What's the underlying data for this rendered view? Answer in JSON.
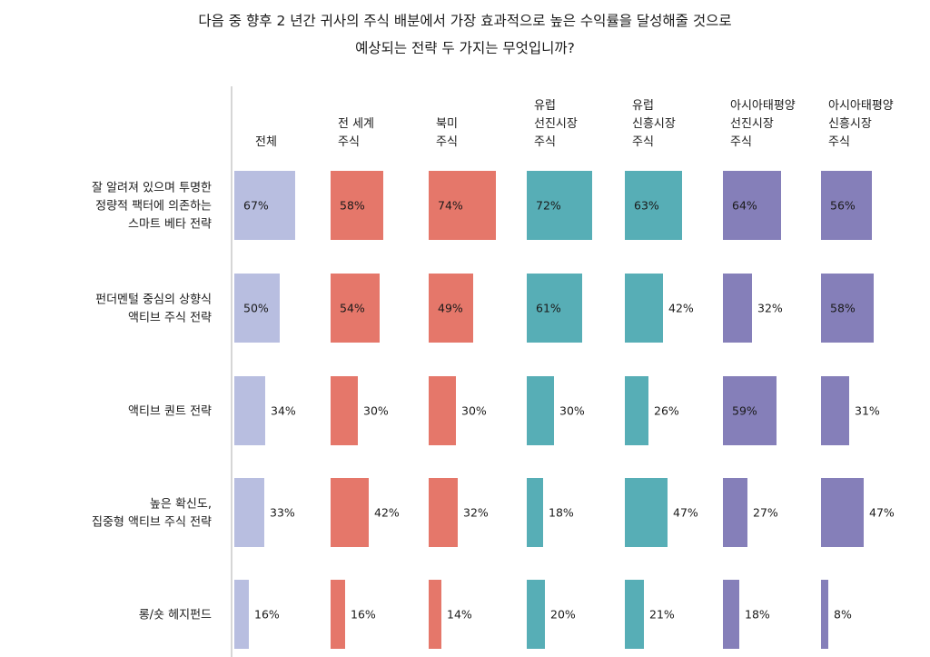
{
  "title": {
    "line1": "다음 중 향후 2 년간 귀사의 주식 배분에서 가장 효과적으로 높은 수익률을 달성해줄 것으로",
    "line2": "예상되는 전략 두 가지는 무엇입니까?"
  },
  "chart_data": {
    "type": "bar",
    "columns": [
      {
        "label_lines": [
          "전체"
        ],
        "color": "#b8bee0"
      },
      {
        "label_lines": [
          "전 세계",
          "주식"
        ],
        "color": "#e5776a"
      },
      {
        "label_lines": [
          "북미",
          "주식"
        ],
        "color": "#e5776a"
      },
      {
        "label_lines": [
          "유럽",
          "선진시장",
          "주식"
        ],
        "color": "#57aeb6"
      },
      {
        "label_lines": [
          "유럽",
          "신흥시장",
          "주식"
        ],
        "color": "#57aeb6"
      },
      {
        "label_lines": [
          "아시아태평양",
          "선진시장",
          "주식"
        ],
        "color": "#857fb9"
      },
      {
        "label_lines": [
          "아시아태평양",
          "신흥시장",
          "주식"
        ],
        "color": "#857fb9"
      }
    ],
    "rows": [
      {
        "label_lines": [
          "잘 알려져 있으며 투명한",
          "정량적 팩터에 의존하는",
          "스마트 베타 전략"
        ],
        "values": [
          67,
          58,
          74,
          72,
          63,
          64,
          56
        ]
      },
      {
        "label_lines": [
          "펀더멘털 중심의 상향식",
          "액티브 주식 전략"
        ],
        "values": [
          50,
          54,
          49,
          61,
          42,
          32,
          58
        ]
      },
      {
        "label_lines": [
          "액티브 퀀트 전략"
        ],
        "values": [
          34,
          30,
          30,
          30,
          26,
          59,
          31
        ]
      },
      {
        "label_lines": [
          "높은 확신도,",
          "집중형 액티브 주식 전략"
        ],
        "values": [
          33,
          42,
          32,
          18,
          47,
          27,
          47
        ]
      },
      {
        "label_lines": [
          "롱/숏 헤지펀드"
        ],
        "values": [
          16,
          16,
          14,
          20,
          21,
          18,
          8
        ]
      }
    ],
    "value_suffix": "%",
    "ylim": [
      0,
      100
    ]
  }
}
